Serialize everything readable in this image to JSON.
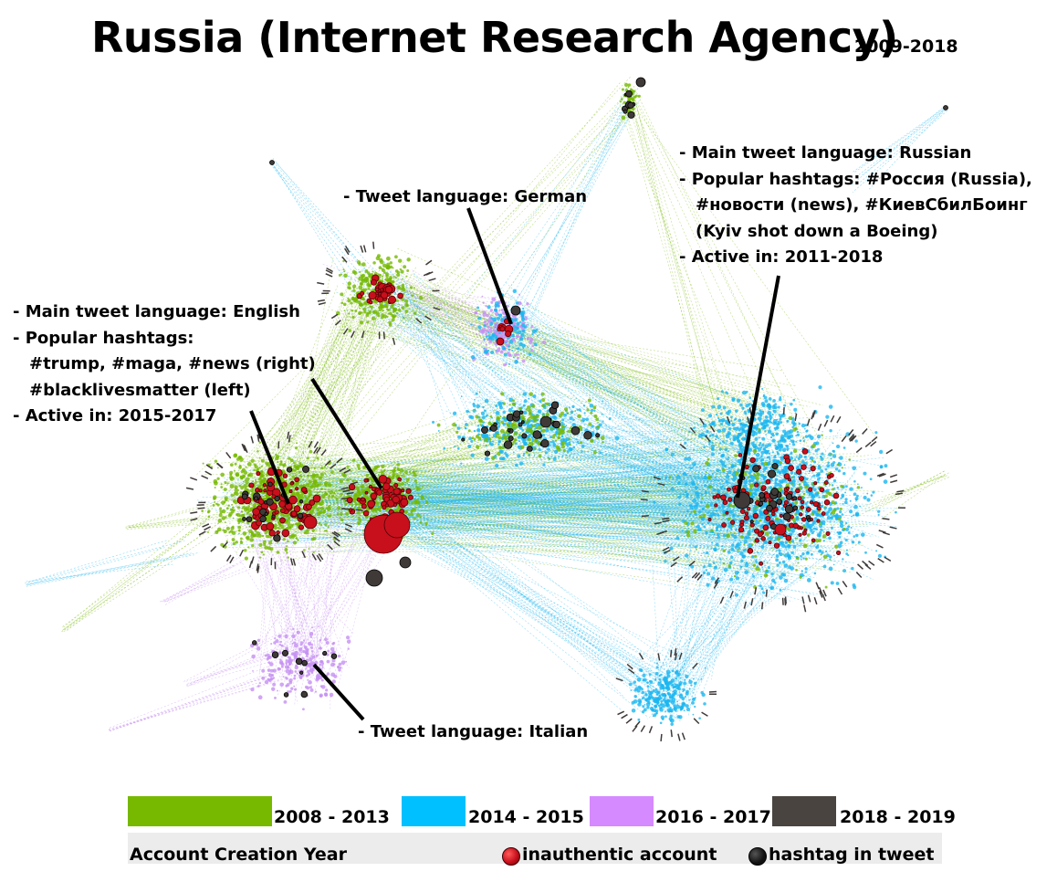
{
  "header": {
    "title": "Russia (Internet Research Agency)",
    "subtitle": "2009-2018"
  },
  "annotations": {
    "english": [
      "- Main tweet language: English",
      "- Popular hashtags:",
      "#trump, #maga, #news (right)",
      "#blacklivesmatter (left)",
      "- Active in: 2015-2017"
    ],
    "german": [
      "- Tweet language: German"
    ],
    "russian": [
      "- Main tweet language: Russian",
      "- Popular hashtags: #Россия (Russia),",
      "#новости (news), #КиевСбилБоинг",
      "(Kyiv shot down a Boeing)",
      "- Active in: 2011-2018"
    ],
    "italian": [
      "- Tweet language: Italian"
    ]
  },
  "legend": {
    "ranges": [
      {
        "label": "2008 - 2013",
        "color": "#76b900"
      },
      {
        "label": "2014 - 2015",
        "color": "#00c0ff"
      },
      {
        "label": "2016 - 2017",
        "color": "#d68aff"
      },
      {
        "label": "2018 - 2019",
        "color": "#4a4440"
      }
    ],
    "caption": "Account Creation Year",
    "markers": [
      {
        "label": "inauthentic account",
        "color": "#c8101c"
      },
      {
        "label": "hashtag in tweet",
        "color": "#111111"
      }
    ]
  },
  "colors": {
    "green": "#76b900",
    "blue": "#1ab6f0",
    "purple": "#c690f2",
    "dark": "#3f3a38",
    "red": "#c8101c"
  }
}
